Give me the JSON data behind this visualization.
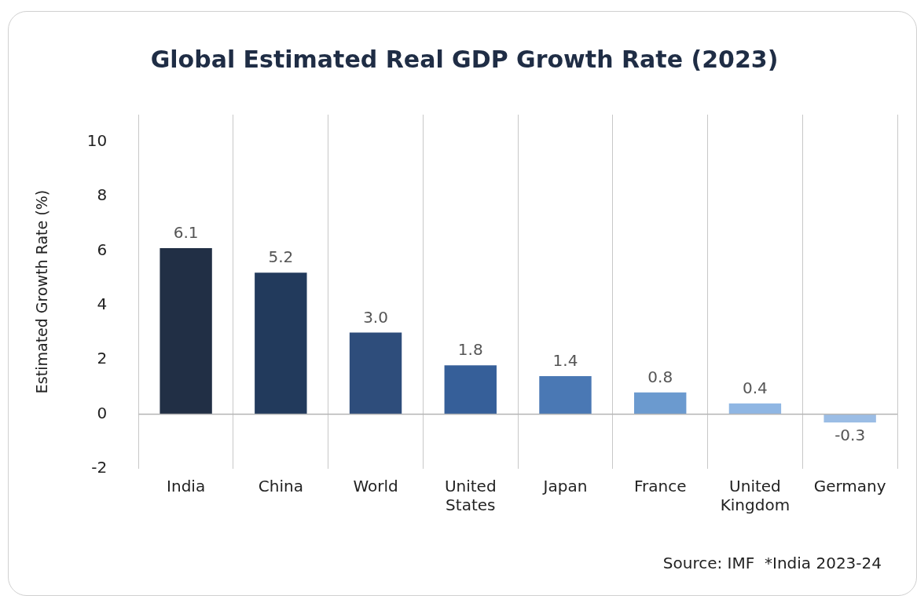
{
  "chart_data": {
    "type": "bar",
    "title": "Global Estimated Real GDP Growth Rate (2023)",
    "ylabel": "Estimated Growth Rate (%)",
    "categories": [
      "India",
      "China",
      "World",
      "United States",
      "Japan",
      "France",
      "United Kingdom",
      "Germany"
    ],
    "values": [
      6.1,
      5.2,
      3.0,
      1.8,
      1.4,
      0.8,
      0.4,
      -0.3
    ],
    "colors": [
      "#212f45",
      "#223a5c",
      "#2e4d7b",
      "#365f99",
      "#4a78b4",
      "#6b9acf",
      "#8fb6e3",
      "#9bbde5"
    ],
    "value_labels": [
      "6.1",
      "5.2",
      "3.0",
      "1.8",
      "1.4",
      "0.8",
      "0.4",
      "-0.3"
    ],
    "ylim": [
      -2,
      11
    ],
    "yticks": [
      -2,
      0,
      2,
      4,
      6,
      8,
      10
    ],
    "grid": "x",
    "legend": false,
    "annotations": [
      "Source: IMF  *India 2023-24"
    ]
  }
}
